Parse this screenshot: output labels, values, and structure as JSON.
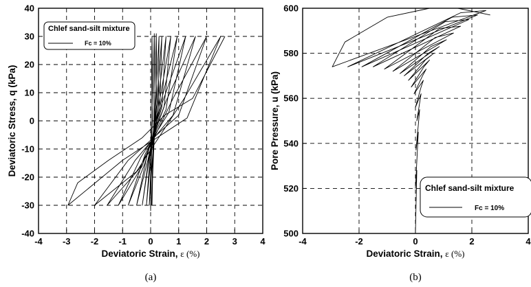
{
  "chart_data": [
    {
      "type": "line",
      "panel_label": "(a)",
      "xlabel": "Deviatoric Strain, ",
      "xlabel_unit": "ε (%)",
      "ylabel": "Deviatoric Stress, q (kPa)",
      "xlim": [
        -4,
        4
      ],
      "ylim": [
        -40,
        40
      ],
      "xticks": [
        "-4",
        "-3",
        "-2",
        "-1",
        "0",
        "1",
        "2",
        "3",
        "4"
      ],
      "yticks": [
        "-40",
        "-30",
        "-20",
        "-10",
        "0",
        "10",
        "20",
        "30",
        "40"
      ],
      "grid": "dashed",
      "legend": {
        "position": "top-left",
        "title": "Chlef sand-silt mixture",
        "entry": "Fc = 10%"
      },
      "series": [
        {
          "description": "cyclic loops with growing strain amplitude",
          "points": [
            [
              0.0,
              -32
            ],
            [
              0.02,
              0
            ],
            [
              0.05,
              30
            ],
            [
              0.08,
              4
            ],
            [
              0.04,
              -6
            ],
            [
              0.0,
              -30
            ],
            [
              0.03,
              -8
            ],
            [
              0.08,
              6
            ],
            [
              0.13,
              31
            ],
            [
              0.16,
              5
            ],
            [
              0.1,
              -7
            ],
            [
              0.05,
              -30
            ],
            [
              0.08,
              -9
            ],
            [
              0.14,
              6
            ],
            [
              0.2,
              31
            ],
            [
              0.22,
              6
            ],
            [
              0.12,
              -8
            ],
            [
              0.03,
              -30
            ],
            [
              0.09,
              -8
            ],
            [
              0.18,
              6
            ],
            [
              0.3,
              30
            ],
            [
              0.28,
              5
            ],
            [
              0.1,
              -8
            ],
            [
              -0.05,
              -30
            ],
            [
              0.05,
              -8
            ],
            [
              0.22,
              6
            ],
            [
              0.4,
              30
            ],
            [
              0.33,
              5
            ],
            [
              0.05,
              -9
            ],
            [
              -0.15,
              -30
            ],
            [
              0.0,
              -10
            ],
            [
              0.25,
              6
            ],
            [
              0.55,
              30
            ],
            [
              0.4,
              5
            ],
            [
              0.0,
              -10
            ],
            [
              -0.3,
              -30
            ],
            [
              -0.05,
              -12
            ],
            [
              0.3,
              6
            ],
            [
              0.72,
              30
            ],
            [
              0.48,
              5
            ],
            [
              -0.1,
              -11
            ],
            [
              -0.5,
              -30
            ],
            [
              -0.1,
              -14
            ],
            [
              0.35,
              6
            ],
            [
              0.95,
              30
            ],
            [
              0.55,
              4
            ],
            [
              -0.2,
              -12
            ],
            [
              -0.8,
              -30
            ],
            [
              -0.2,
              -15
            ],
            [
              0.4,
              6
            ],
            [
              1.25,
              30
            ],
            [
              0.65,
              3
            ],
            [
              -0.35,
              -13
            ],
            [
              -1.15,
              -30
            ],
            [
              -0.3,
              -16
            ],
            [
              0.55,
              7
            ],
            [
              1.6,
              30
            ],
            [
              0.8,
              2
            ],
            [
              -0.55,
              -14
            ],
            [
              -1.55,
              -30
            ],
            [
              -0.4,
              -17
            ],
            [
              0.8,
              8
            ],
            [
              2.0,
              30
            ],
            [
              1.0,
              2
            ],
            [
              -0.8,
              -14
            ],
            [
              -2.0,
              -30
            ],
            [
              -0.5,
              -18
            ],
            [
              1.2,
              8
            ],
            [
              2.5,
              30
            ],
            [
              1.3,
              1
            ],
            [
              -1.0,
              -14
            ],
            [
              -2.95,
              -30
            ],
            [
              -2.6,
              -22
            ],
            [
              -1.5,
              -14
            ],
            [
              -0.3,
              -6
            ],
            [
              0.5,
              2
            ],
            [
              1.5,
              8
            ],
            [
              2.65,
              30
            ]
          ]
        }
      ]
    },
    {
      "type": "line",
      "panel_label": "(b)",
      "xlabel": "Deviatoric Strain, ",
      "xlabel_unit": "ε (%)",
      "ylabel": "Pore Pressure, u (kPa)",
      "xlim": [
        -4,
        4
      ],
      "ylim": [
        500,
        600
      ],
      "xticks": [
        "-4",
        "-2",
        "0",
        "2",
        "4"
      ],
      "yticks": [
        "500",
        "520",
        "540",
        "560",
        "580",
        "600"
      ],
      "grid": "dashed",
      "legend": {
        "position": "bottom-right",
        "title": "Chlef sand-silt mixture",
        "entry": "Fc = 10%"
      },
      "series": [
        {
          "description": "pore pressure build-up with strain",
          "points": [
            [
              0.0,
              500
            ],
            [
              0.02,
              512
            ],
            [
              0.05,
              528
            ],
            [
              0.0,
              520
            ],
            [
              0.06,
              535
            ],
            [
              0.1,
              545
            ],
            [
              0.02,
              537
            ],
            [
              0.1,
              548
            ],
            [
              0.15,
              555
            ],
            [
              0.05,
              550
            ],
            [
              0.15,
              558
            ],
            [
              0.2,
              562
            ],
            [
              0.0,
              556
            ],
            [
              0.2,
              565
            ],
            [
              0.28,
              568
            ],
            [
              -0.05,
              562
            ],
            [
              0.25,
              570
            ],
            [
              0.38,
              573
            ],
            [
              -0.15,
              565
            ],
            [
              0.3,
              574
            ],
            [
              0.5,
              577
            ],
            [
              -0.25,
              568
            ],
            [
              0.35,
              577
            ],
            [
              0.65,
              580
            ],
            [
              -0.4,
              570
            ],
            [
              0.45,
              580
            ],
            [
              0.85,
              583
            ],
            [
              -0.55,
              571
            ],
            [
              0.55,
              583
            ],
            [
              1.1,
              586
            ],
            [
              -0.8,
              572
            ],
            [
              0.7,
              587
            ],
            [
              1.35,
              589
            ],
            [
              -1.1,
              573
            ],
            [
              0.85,
              591
            ],
            [
              1.6,
              592
            ],
            [
              -1.5,
              574
            ],
            [
              1.05,
              594
            ],
            [
              1.9,
              595
            ],
            [
              -1.9,
              574
            ],
            [
              1.3,
              596
            ],
            [
              2.2,
              597
            ],
            [
              -2.4,
              574
            ],
            [
              1.6,
              598
            ],
            [
              2.5,
              599
            ],
            [
              -2.95,
              574
            ],
            [
              -2.5,
              585
            ],
            [
              -1.0,
              596
            ],
            [
              0.5,
              600
            ],
            [
              1.5,
              600
            ],
            [
              2.65,
              597
            ]
          ]
        }
      ]
    }
  ]
}
